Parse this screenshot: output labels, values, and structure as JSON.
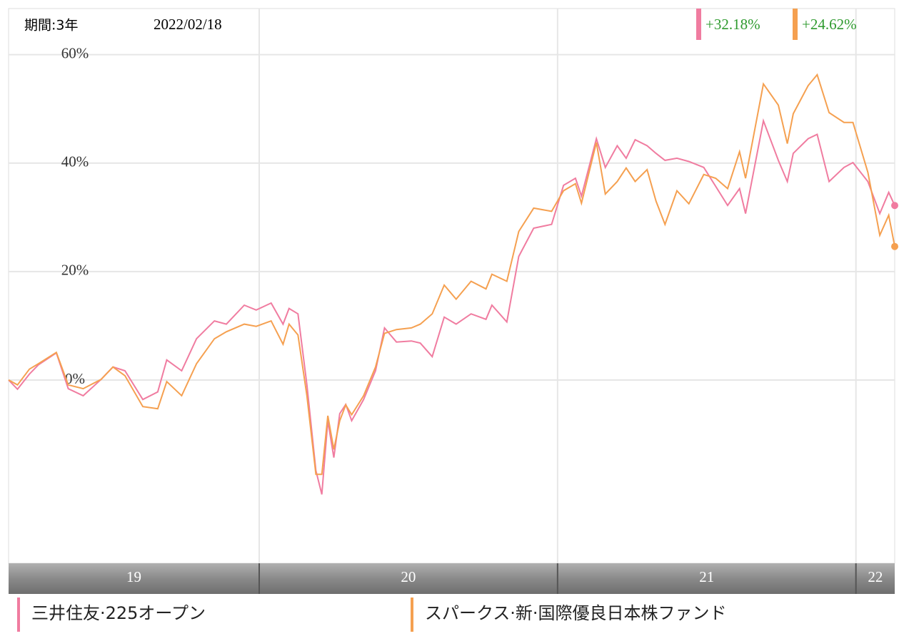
{
  "chart_data": {
    "type": "line",
    "period": "期間:3年",
    "date": "2022/02/18",
    "x": [
      2019.16,
      2019.19,
      2019.23,
      2019.26,
      2019.32,
      2019.36,
      2019.41,
      2019.47,
      2019.51,
      2019.55,
      2019.61,
      2019.66,
      2019.69,
      2019.74,
      2019.79,
      2019.85,
      2019.89,
      2019.95,
      2019.99,
      2020.04,
      2020.08,
      2020.1,
      2020.13,
      2020.16,
      2020.19,
      2020.21,
      2020.23,
      2020.25,
      2020.27,
      2020.29,
      2020.31,
      2020.35,
      2020.39,
      2020.42,
      2020.46,
      2020.51,
      2020.54,
      2020.58,
      2020.62,
      2020.66,
      2020.71,
      2020.76,
      2020.78,
      2020.83,
      2020.87,
      2020.92,
      2020.98,
      2021.02,
      2021.06,
      2021.08,
      2021.13,
      2021.16,
      2021.2,
      2021.23,
      2021.26,
      2021.3,
      2021.33,
      2021.36,
      2021.4,
      2021.44,
      2021.49,
      2021.53,
      2021.57,
      2021.61,
      2021.63,
      2021.69,
      2021.74,
      2021.77,
      2021.79,
      2021.84,
      2021.87,
      2021.91,
      2021.96,
      2021.99,
      2022.04,
      2022.08,
      2022.11,
      2022.13
    ],
    "series": [
      {
        "name": "三井住友·225オープン",
        "color": "#f07ca0",
        "end_label": "+32.18%",
        "values": [
          0,
          -1.7,
          1.1,
          2.8,
          5.0,
          -1.6,
          -2.9,
          0.1,
          2.4,
          1.7,
          -3.6,
          -2.2,
          3.7,
          1.7,
          7.6,
          10.9,
          10.3,
          13.8,
          12.9,
          14.2,
          10.3,
          13.2,
          12.2,
          -0.9,
          -16.7,
          -21.1,
          -7.5,
          -14.3,
          -6.2,
          -4.5,
          -7.5,
          -3.6,
          1.7,
          9.6,
          7.0,
          7.2,
          6.8,
          4.3,
          11.6,
          10.3,
          12.2,
          11.2,
          13.8,
          10.7,
          22.8,
          28.0,
          28.7,
          35.9,
          37.2,
          33.9,
          44.5,
          39.2,
          43.2,
          40.9,
          44.3,
          43.2,
          41.8,
          40.5,
          40.9,
          40.3,
          39.2,
          35.7,
          32.2,
          35.3,
          30.7,
          47.8,
          40.5,
          36.6,
          41.8,
          44.5,
          45.3,
          36.6,
          39.2,
          40.1,
          36.6,
          30.7,
          34.6,
          32.18
        ]
      },
      {
        "name": "スパークス·新·国際優良日本株ファンド",
        "color": "#f5a050",
        "end_label": "+24.62%",
        "values": [
          0,
          -0.9,
          2.0,
          3.0,
          5.1,
          -0.9,
          -1.6,
          0.1,
          2.4,
          0.8,
          -4.9,
          -5.3,
          -0.3,
          -2.9,
          3.0,
          7.6,
          8.9,
          10.3,
          9.9,
          10.9,
          6.6,
          10.3,
          8.3,
          -2.9,
          -17.4,
          -17.4,
          -6.6,
          -12.8,
          -7.5,
          -4.6,
          -6.4,
          -2.9,
          2.4,
          8.6,
          9.3,
          9.6,
          10.3,
          12.2,
          17.5,
          14.9,
          18.2,
          16.8,
          19.5,
          18.2,
          27.4,
          31.7,
          31.1,
          34.9,
          36.2,
          32.6,
          43.8,
          34.3,
          36.6,
          39.1,
          36.6,
          38.8,
          33.0,
          28.7,
          34.9,
          32.5,
          37.9,
          37.2,
          35.3,
          42.1,
          37.2,
          54.6,
          50.7,
          43.6,
          49.1,
          54.3,
          56.3,
          49.3,
          47.5,
          47.5,
          38.3,
          26.7,
          30.4,
          24.62
        ]
      }
    ],
    "xlim": [
      2019.16,
      2022.13
    ],
    "xbands": [
      {
        "label": "19",
        "start": 2019.16,
        "end": 2020
      },
      {
        "label": "20",
        "start": 2020,
        "end": 2021
      },
      {
        "label": "21",
        "start": 2021,
        "end": 2022
      },
      {
        "label": "22",
        "start": 2022,
        "end": 2022.13
      }
    ],
    "ylim": [
      -33.8,
      68.5
    ],
    "yticks": [
      {
        "value": 0,
        "label": "0%"
      },
      {
        "value": 20,
        "label": "20%"
      },
      {
        "value": 40,
        "label": "40%"
      },
      {
        "value": 60,
        "label": "60%"
      }
    ],
    "grid": true
  }
}
